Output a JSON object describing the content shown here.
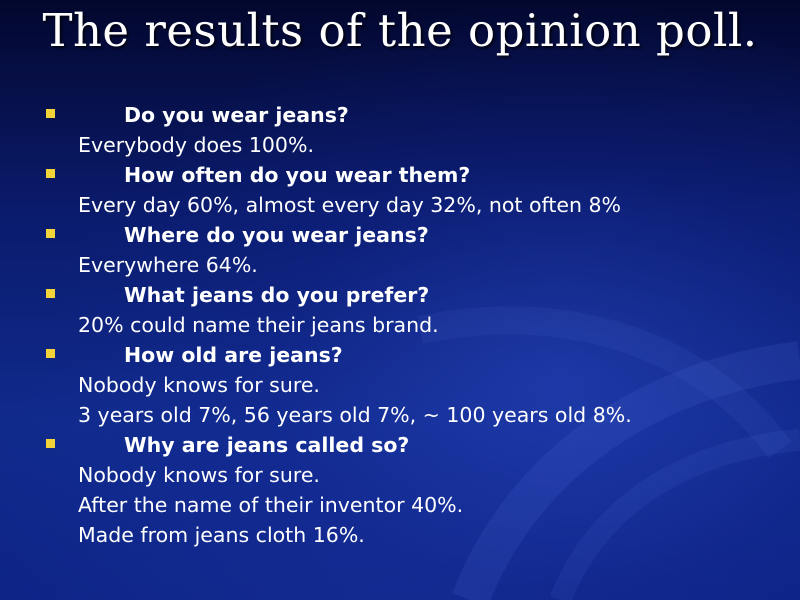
{
  "slide": {
    "title": "The results of the opinion poll.",
    "colors": {
      "background": "#0d2284",
      "text": "#ffffff",
      "bullet": "#f2d43a"
    },
    "bullet_icon": "yellow-square-bullet",
    "items": [
      {
        "question": "Do you wear jeans?",
        "answers": [
          "Everybody does 100%."
        ]
      },
      {
        "question": "How often do you wear them?",
        "answers": [
          "Every day 60%, almost every day 32%, not often 8%"
        ]
      },
      {
        "question": "Where do you wear jeans?",
        "answers": [
          "Everywhere 64%."
        ]
      },
      {
        "question": "What jeans do you prefer?",
        "answers": [
          "20% could name their jeans brand."
        ]
      },
      {
        "question": "How old are jeans?",
        "answers": [
          "Nobody knows for sure.",
          "3 years old 7%, 56 years old 7%, ~ 100 years old 8%."
        ]
      },
      {
        "question": "Why are jeans called so?",
        "answers": [
          "Nobody knows for sure.",
          "After the name of their inventor 40%.",
          "Made from jeans cloth 16%."
        ]
      }
    ]
  }
}
